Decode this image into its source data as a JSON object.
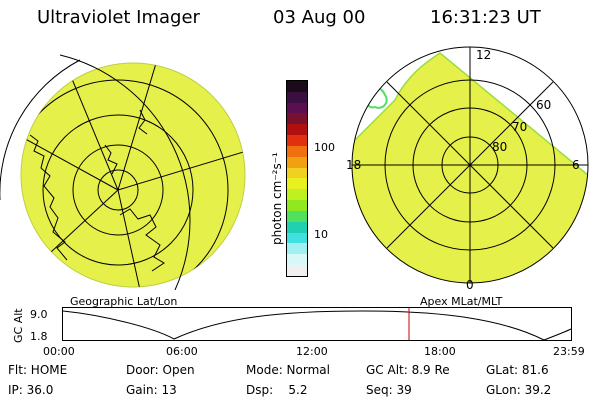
{
  "header": {
    "instrument": "Ultraviolet Imager",
    "date": "03 Aug 00",
    "time": "16:31:23 UT"
  },
  "colorbar": {
    "unit_label": "photon cm⁻²s⁻¹",
    "ticks": [
      "100",
      "10"
    ],
    "colors": [
      "#1a0a1a",
      "#3a1040",
      "#5a1050",
      "#7a1030",
      "#b01010",
      "#e03010",
      "#f07010",
      "#f0a010",
      "#f0d020",
      "#e8f020",
      "#c0f020",
      "#90e820",
      "#50e060",
      "#20d0b0",
      "#40e0e0",
      "#a0f0f0",
      "#d8f8f8",
      "#f0f0f0"
    ]
  },
  "left_panel": {
    "caption": "Geographic Lat/Lon",
    "fill_color": "#e6f04a"
  },
  "right_panel": {
    "caption": "Apex MLat/MLT",
    "mlt_labels": {
      "top": "12",
      "left": "18",
      "right": "6",
      "bottom": "0"
    },
    "lat_labels": [
      "60",
      "70",
      "80"
    ],
    "fill_color": "#e6f04a"
  },
  "altitude_plot": {
    "ylabel": "GC Alt",
    "y_ticks": [
      "9.0",
      "1.8"
    ],
    "x_ticks": [
      "00:00",
      "06:00",
      "12:00",
      "18:00",
      "23:59"
    ],
    "marker_color": "#cc0000"
  },
  "footer": {
    "row1": {
      "flt": "Flt: HOME",
      "door": "Door: Open",
      "mode": "Mode: Normal",
      "gcalt": "GC Alt: 8.9 Re",
      "glat": "GLat: 81.6"
    },
    "row2": {
      "ip": "IP: 36.0",
      "gain": "Gain: 13",
      "dsp": "Dsp:    5.2",
      "seq": "Seq: 39",
      "glon": "GLon: 39.2"
    }
  }
}
